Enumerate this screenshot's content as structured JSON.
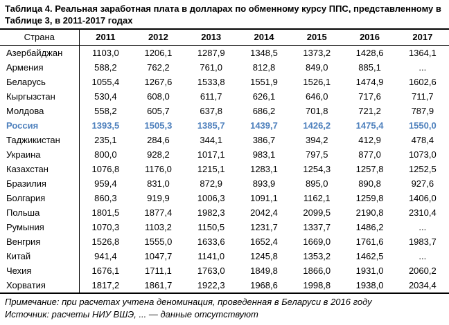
{
  "title": "Таблица 4. Реальная заработная плата в долларах по обменному курсу ППС, представленному в Таблице 3, в 2011-2017 годах",
  "table": {
    "country_header": "Страна",
    "year_headers": [
      "2011",
      "2012",
      "2013",
      "2014",
      "2015",
      "2016",
      "2017"
    ],
    "rows": [
      {
        "country": "Азербайджан",
        "highlight": false,
        "values": [
          "1103,0",
          "1206,1",
          "1287,9",
          "1348,5",
          "1373,2",
          "1428,6",
          "1364,1"
        ]
      },
      {
        "country": "Армения",
        "highlight": false,
        "values": [
          "588,2",
          "762,2",
          "761,0",
          "812,8",
          "849,0",
          "885,1",
          "..."
        ]
      },
      {
        "country": "Беларусь",
        "highlight": false,
        "values": [
          "1055,4",
          "1267,6",
          "1533,8",
          "1551,9",
          "1526,1",
          "1474,9",
          "1602,6"
        ]
      },
      {
        "country": "Кыргызстан",
        "highlight": false,
        "values": [
          "530,4",
          "608,0",
          "611,7",
          "626,1",
          "646,0",
          "717,6",
          "711,7"
        ]
      },
      {
        "country": "Молдова",
        "highlight": false,
        "values": [
          "558,2",
          "605,7",
          "637,8",
          "686,2",
          "701,8",
          "721,2",
          "787,9"
        ]
      },
      {
        "country": "Россия",
        "highlight": true,
        "values": [
          "1393,5",
          "1505,3",
          "1385,7",
          "1439,7",
          "1426,2",
          "1475,4",
          "1550,0"
        ]
      },
      {
        "country": "Таджикистан",
        "highlight": false,
        "values": [
          "235,1",
          "284,6",
          "344,1",
          "386,7",
          "394,2",
          "412,9",
          "478,4"
        ]
      },
      {
        "country": "Украина",
        "highlight": false,
        "values": [
          "800,0",
          "928,2",
          "1017,1",
          "983,1",
          "797,5",
          "877,0",
          "1073,0"
        ]
      },
      {
        "country": "Казахстан",
        "highlight": false,
        "values": [
          "1076,8",
          "1176,0",
          "1215,1",
          "1283,1",
          "1254,3",
          "1257,8",
          "1252,5"
        ]
      },
      {
        "country": "Бразилия",
        "highlight": false,
        "values": [
          "959,4",
          "831,0",
          "872,9",
          "893,9",
          "895,0",
          "890,8",
          "927,6"
        ]
      },
      {
        "country": "Болгария",
        "highlight": false,
        "values": [
          "860,3",
          "919,9",
          "1006,3",
          "1091,1",
          "1162,1",
          "1259,8",
          "1406,0"
        ]
      },
      {
        "country": "Польша",
        "highlight": false,
        "values": [
          "1801,5",
          "1877,4",
          "1982,3",
          "2042,4",
          "2099,5",
          "2190,8",
          "2310,4"
        ]
      },
      {
        "country": "Румыния",
        "highlight": false,
        "values": [
          "1070,3",
          "1103,2",
          "1150,5",
          "1231,7",
          "1337,7",
          "1486,2",
          "..."
        ]
      },
      {
        "country": "Венгрия",
        "highlight": false,
        "values": [
          "1526,8",
          "1555,0",
          "1633,6",
          "1652,4",
          "1669,0",
          "1761,6",
          "1983,7"
        ]
      },
      {
        "country": "Китай",
        "highlight": false,
        "values": [
          "941,4",
          "1047,7",
          "1141,0",
          "1245,8",
          "1353,2",
          "1462,5",
          "..."
        ]
      },
      {
        "country": "Чехия",
        "highlight": false,
        "values": [
          "1676,1",
          "1711,1",
          "1763,0",
          "1849,8",
          "1866,0",
          "1931,0",
          "2060,2"
        ]
      },
      {
        "country": "Хорватия",
        "highlight": false,
        "values": [
          "1817,2",
          "1861,7",
          "1922,3",
          "1968,6",
          "1998,8",
          "1938,0",
          "2034,4"
        ]
      }
    ]
  },
  "notes": {
    "note": "Примечание: при расчетах учтена деноминация, проведенная в Беларуси в 2016 году",
    "source": "Источник: расчеты НИУ ВШЭ, ... — данные отсутствуют"
  },
  "colors": {
    "highlight_row": "#4F81BD",
    "text": "#000000",
    "border": "#000000"
  }
}
